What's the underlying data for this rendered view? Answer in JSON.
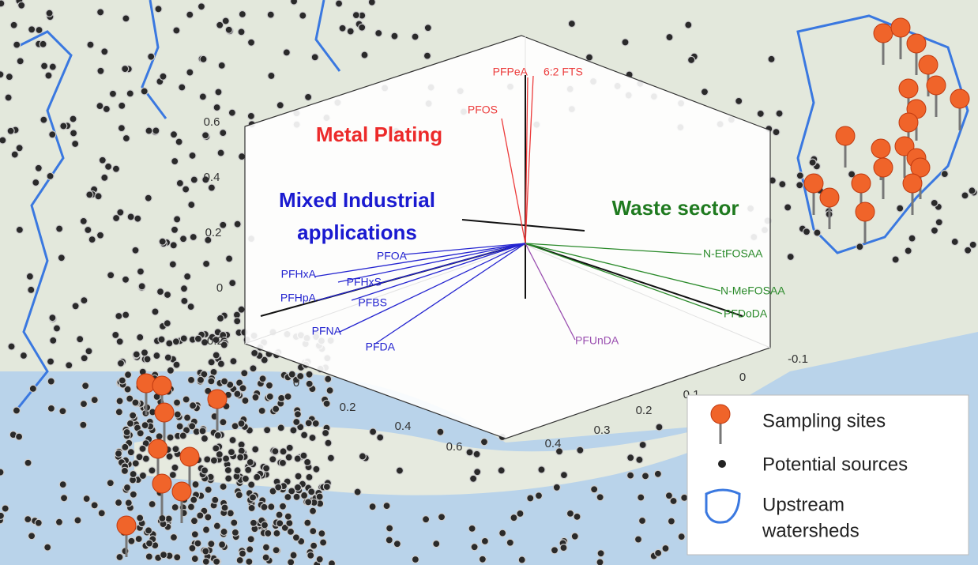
{
  "plot": {
    "groups": [
      {
        "label": "Metal Plating",
        "color": "#ec2a2a"
      },
      {
        "label_lines": [
          "Mixed Industrial",
          "applications"
        ],
        "color": "#1a1ad0"
      },
      {
        "label": "Waste sector",
        "color": "#1f7a1f"
      }
    ],
    "loadings": [
      {
        "label": "PFPeA",
        "color": "#ec3b3b"
      },
      {
        "label": "6:2 FTS",
        "color": "#ec3b3b"
      },
      {
        "label": "PFOS",
        "color": "#ec3b3b"
      },
      {
        "label": "PFOA",
        "color": "#2424d0"
      },
      {
        "label": "PFHxA",
        "color": "#2424d0"
      },
      {
        "label": "PFHxS",
        "color": "#2424d0"
      },
      {
        "label": "PFHpA",
        "color": "#2424d0"
      },
      {
        "label": "PFBS",
        "color": "#2424d0"
      },
      {
        "label": "PFNA",
        "color": "#2424d0"
      },
      {
        "label": "PFDA",
        "color": "#2424d0"
      },
      {
        "label": "N-EtFOSAA",
        "color": "#2a8a2a"
      },
      {
        "label": "N-MeFOSAA",
        "color": "#2a8a2a"
      },
      {
        "label": "PFDoDA",
        "color": "#2a8a2a"
      },
      {
        "label": "PFUnDA",
        "color": "#9a4fb0"
      }
    ],
    "ticks_left": [
      "0.6",
      "0.4",
      "0.2",
      "0",
      "-0.2"
    ],
    "ticks_bottom_left": [
      "0",
      "0.2",
      "0.4",
      "0.6"
    ],
    "ticks_bottom_right": [
      "-0.1",
      "0",
      "0.1",
      "0.2",
      "0.3",
      "0.4"
    ]
  },
  "legend": {
    "items": [
      {
        "label": "Sampling sites"
      },
      {
        "label": "Potential sources"
      },
      {
        "label_lines": [
          "Upstream",
          "watersheds"
        ]
      }
    ]
  }
}
